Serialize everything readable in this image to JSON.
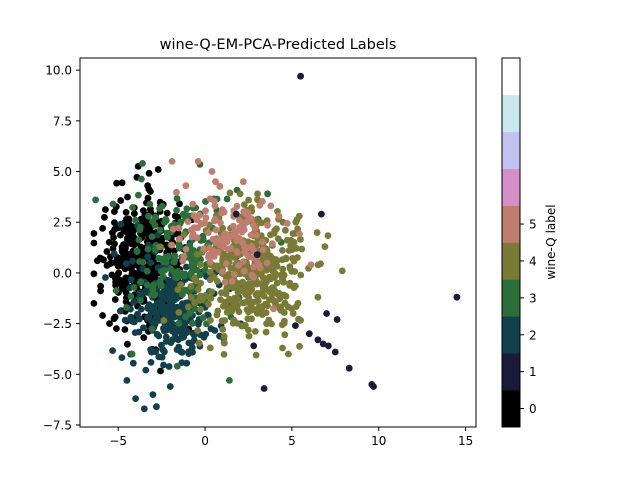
{
  "chart_data": {
    "type": "scatter",
    "title": "wine-Q-EM-PCA-Predicted Labels",
    "xlabel": "",
    "ylabel": "",
    "xlim": [
      -7.2,
      15.6
    ],
    "ylim": [
      -7.6,
      10.6
    ],
    "xticks": [
      -5,
      0,
      5,
      10,
      15
    ],
    "yticks": [
      -7.5,
      -5.0,
      -2.5,
      0.0,
      2.5,
      5.0,
      7.5,
      10.0
    ],
    "xtick_labels": [
      "−5",
      "0",
      "5",
      "10",
      "15"
    ],
    "ytick_labels": [
      "−7.5",
      "−5.0",
      "−2.5",
      "0.0",
      "2.5",
      "5.0",
      "7.5",
      "10.0"
    ],
    "grid": false,
    "colorbar": {
      "label": "wine-Q label",
      "levels": [
        {
          "value": 0,
          "color": "#000000"
        },
        {
          "value": 1,
          "color": "#1c1a3a"
        },
        {
          "value": 2,
          "color": "#12404a"
        },
        {
          "value": 3,
          "color": "#2b6e3a"
        },
        {
          "value": 4,
          "color": "#787a36"
        },
        {
          "value": 5,
          "color": "#be7d6e"
        },
        {
          "value": 6,
          "color": "#d28fc8"
        },
        {
          "value": 7,
          "color": "#c2c2f0"
        },
        {
          "value": 8,
          "color": "#cbe8ec"
        },
        {
          "value": 9,
          "color": "#ffffff"
        }
      ],
      "tick_values": [
        0,
        1,
        2,
        3,
        4,
        5
      ],
      "tick_labels": [
        "0",
        "1",
        "2",
        "3",
        "4",
        "5"
      ]
    },
    "clusters": [
      {
        "label": 0,
        "color": "#000000",
        "center": [
          -3.6,
          0.6
        ],
        "spread": [
          1.1,
          1.5
        ],
        "count": 380
      },
      {
        "label": 2,
        "color": "#12404a",
        "center": [
          -1.8,
          -1.8
        ],
        "spread": [
          1.3,
          1.3
        ],
        "count": 300
      },
      {
        "label": 3,
        "color": "#2b6e3a",
        "center": [
          -1.0,
          1.0
        ],
        "spread": [
          1.8,
          1.7
        ],
        "count": 180
      },
      {
        "label": 4,
        "color": "#787a36",
        "center": [
          2.6,
          0.0
        ],
        "spread": [
          1.5,
          1.5
        ],
        "count": 420
      },
      {
        "label": 5,
        "color": "#be7d6e",
        "center": [
          1.2,
          1.9
        ],
        "spread": [
          1.4,
          1.1
        ],
        "count": 130
      }
    ],
    "points": [
      {
        "x": 5.5,
        "y": 9.7,
        "label": 1
      },
      {
        "x": 14.5,
        "y": -1.2,
        "label": 1
      },
      {
        "x": 9.6,
        "y": -5.5,
        "label": 1
      },
      {
        "x": 9.7,
        "y": -5.6,
        "label": 1
      },
      {
        "x": 8.3,
        "y": -4.7,
        "label": 1
      },
      {
        "x": 7.5,
        "y": -3.9,
        "label": 1
      },
      {
        "x": 6.8,
        "y": -3.5,
        "label": 1
      },
      {
        "x": 6.5,
        "y": -3.3,
        "label": 1
      },
      {
        "x": 7.1,
        "y": -3.6,
        "label": 1
      },
      {
        "x": 6.0,
        "y": -3.0,
        "label": 1
      },
      {
        "x": 7.0,
        "y": -2.0,
        "label": 1
      },
      {
        "x": 7.6,
        "y": -2.3,
        "label": 1
      },
      {
        "x": 6.7,
        "y": 2.9,
        "label": 1
      },
      {
        "x": 3.4,
        "y": -5.7,
        "label": 1
      },
      {
        "x": 2.8,
        "y": -3.6,
        "label": 1
      },
      {
        "x": 5.2,
        "y": -2.6,
        "label": 1
      },
      {
        "x": 1.8,
        "y": 2.9,
        "label": 1
      },
      {
        "x": 3.0,
        "y": 0.9,
        "label": 1
      },
      {
        "x": -6.2,
        "y": 0.6,
        "label": 0
      },
      {
        "x": -5.9,
        "y": -2.1,
        "label": 0
      },
      {
        "x": -5.5,
        "y": -2.5,
        "label": 0
      },
      {
        "x": -2.7,
        "y": 5.1,
        "label": 0
      },
      {
        "x": -3.3,
        "y": 4.3,
        "label": 0
      },
      {
        "x": -5.9,
        "y": 2.2,
        "label": 0
      },
      {
        "x": -3.6,
        "y": 5.4,
        "label": 3
      },
      {
        "x": -6.3,
        "y": 3.6,
        "label": 3
      },
      {
        "x": -5.3,
        "y": 3.4,
        "label": 3
      },
      {
        "x": -4.2,
        "y": -4.0,
        "label": 3
      },
      {
        "x": -1.6,
        "y": -4.6,
        "label": 3
      },
      {
        "x": 1.4,
        "y": -5.3,
        "label": 3
      },
      {
        "x": 3.6,
        "y": 3.9,
        "label": 3
      },
      {
        "x": -2.8,
        "y": -6.6,
        "label": 2
      },
      {
        "x": -3.5,
        "y": -6.7,
        "label": 2
      },
      {
        "x": -4.0,
        "y": -6.2,
        "label": 2
      },
      {
        "x": -3.0,
        "y": -6.0,
        "label": 2
      },
      {
        "x": -4.5,
        "y": -5.3,
        "label": 2
      },
      {
        "x": -2.0,
        "y": -5.6,
        "label": 2
      },
      {
        "x": -1.9,
        "y": 5.5,
        "label": 5
      },
      {
        "x": -0.4,
        "y": 5.5,
        "label": 5
      },
      {
        "x": 0.4,
        "y": 5.0,
        "label": 5
      },
      {
        "x": 0.6,
        "y": 4.5,
        "label": 5
      },
      {
        "x": -1.1,
        "y": 4.3,
        "label": 5
      },
      {
        "x": 2.2,
        "y": 4.5,
        "label": 5
      },
      {
        "x": 6.1,
        "y": 0.4,
        "label": 5
      },
      {
        "x": 4.8,
        "y": -4.0,
        "label": 4
      },
      {
        "x": 7.9,
        "y": 0.1,
        "label": 4
      },
      {
        "x": 6.5,
        "y": -1.2,
        "label": 4
      },
      {
        "x": 6.9,
        "y": 1.3,
        "label": 4
      },
      {
        "x": 0.3,
        "y": -3.7,
        "label": 4
      }
    ]
  }
}
